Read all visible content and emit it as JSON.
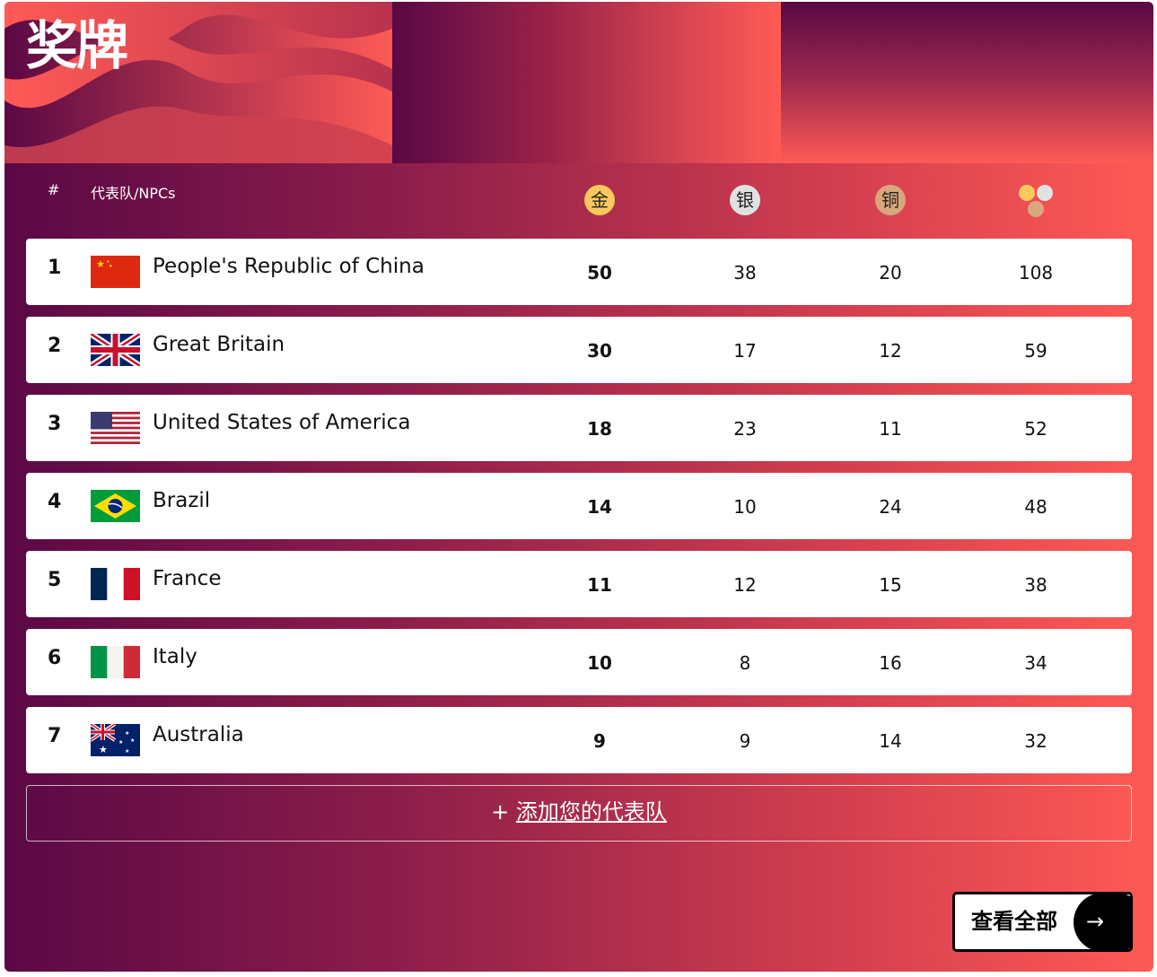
{
  "title": "奖牌",
  "header": {
    "rank": "#",
    "team": "代表队/NPCs",
    "gold": "金",
    "silver": "银",
    "bronze": "铜",
    "total_icon": "medals-total-icon"
  },
  "colors": {
    "gold": "#f9c95d",
    "silver": "#e1e1e1",
    "bronze": "#d9a77d",
    "gradient_start": "#5a0845",
    "gradient_end": "#ff5a55"
  },
  "rows": [
    {
      "rank": "1",
      "flag": "china",
      "name": "People's Republic of China",
      "gold": "50",
      "silver": "38",
      "bronze": "20",
      "total": "108"
    },
    {
      "rank": "2",
      "flag": "uk",
      "name": "Great Britain",
      "gold": "30",
      "silver": "17",
      "bronze": "12",
      "total": "59"
    },
    {
      "rank": "3",
      "flag": "usa",
      "name": "United States of America",
      "gold": "18",
      "silver": "23",
      "bronze": "11",
      "total": "52"
    },
    {
      "rank": "4",
      "flag": "brazil",
      "name": "Brazil",
      "gold": "14",
      "silver": "10",
      "bronze": "24",
      "total": "48"
    },
    {
      "rank": "5",
      "flag": "france",
      "name": "France",
      "gold": "11",
      "silver": "12",
      "bronze": "15",
      "total": "38"
    },
    {
      "rank": "6",
      "flag": "italy",
      "name": "Italy",
      "gold": "10",
      "silver": "8",
      "bronze": "16",
      "total": "34"
    },
    {
      "rank": "7",
      "flag": "australia",
      "name": "Australia",
      "gold": "9",
      "silver": "9",
      "bronze": "14",
      "total": "32"
    }
  ],
  "add_team": {
    "icon": "+",
    "label": "添加您的代表队"
  },
  "view_all": {
    "label": "查看全部",
    "icon": "→"
  }
}
